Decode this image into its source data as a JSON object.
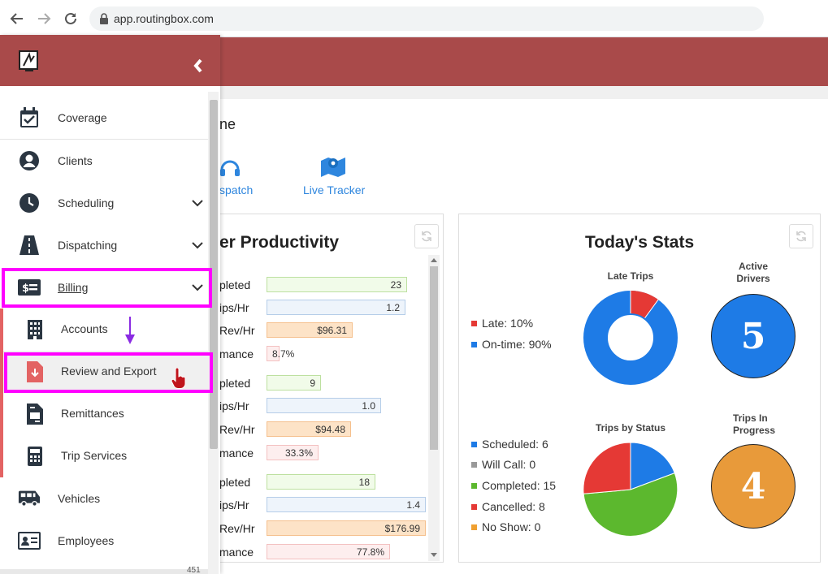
{
  "browser": {
    "url": "app.routingbox.com"
  },
  "page": {
    "title_fragment": "ne"
  },
  "quick_links": [
    {
      "label": "spatch",
      "icon": "headset-icon"
    },
    {
      "label": "Live Tracker",
      "icon": "map-pin-icon"
    }
  ],
  "productivity": {
    "title": "er Productivity",
    "groups": [
      {
        "rows": [
          {
            "label": "pleted",
            "value": "23",
            "color": "green"
          },
          {
            "label": "ips/Hr",
            "value": "1.2",
            "color": "blue"
          },
          {
            "label": "Rev/Hr",
            "value": "$96.31",
            "color": "orange"
          },
          {
            "label": "mance",
            "value": "8.7%",
            "color": "pink"
          }
        ]
      },
      {
        "rows": [
          {
            "label": "pleted",
            "value": "9",
            "color": "green"
          },
          {
            "label": "ips/Hr",
            "value": "1.0",
            "color": "blue"
          },
          {
            "label": "Rev/Hr",
            "value": "$94.48",
            "color": "orange"
          },
          {
            "label": "mance",
            "value": "33.3%",
            "color": "pink"
          }
        ]
      },
      {
        "rows": [
          {
            "label": "pleted",
            "value": "18",
            "color": "green"
          },
          {
            "label": "ips/Hr",
            "value": "1.4",
            "color": "blue"
          },
          {
            "label": "Rev/Hr",
            "value": "$176.99",
            "color": "orange"
          },
          {
            "label": "mance",
            "value": "77.8%",
            "color": "pink"
          }
        ]
      }
    ]
  },
  "stats": {
    "title": "Today's Stats",
    "late_trips": {
      "title": "Late Trips",
      "legend": [
        {
          "label": "Late: 10%",
          "color": "#e53935"
        },
        {
          "label": "On-time: 90%",
          "color": "#1e7be6"
        }
      ]
    },
    "active_drivers": {
      "title_line1": "Active",
      "title_line2": "Drivers",
      "value": "5",
      "color": "#1e7be6"
    },
    "trips_by_status": {
      "title": "Trips by Status",
      "legend": [
        {
          "label": "Scheduled: 6",
          "color": "#1e7be6"
        },
        {
          "label": "Will Call: 0",
          "color": "#999999"
        },
        {
          "label": "Completed: 15",
          "color": "#5cb82e"
        },
        {
          "label": "Cancelled: 8",
          "color": "#e53935"
        },
        {
          "label": "No Show: 0",
          "color": "#f0a030"
        }
      ]
    },
    "trips_in_progress": {
      "title_line1": "Trips In",
      "title_line2": "Progress",
      "value": "4",
      "color": "#e89a3a"
    }
  },
  "sidebar": {
    "items": [
      {
        "label": "Coverage",
        "icon": "calendar-check-icon"
      },
      {
        "label": "Clients",
        "icon": "user-circle-icon"
      },
      {
        "label": "Scheduling",
        "icon": "clock-icon"
      },
      {
        "label": "Dispatching",
        "icon": "road-icon"
      },
      {
        "label": "Billing",
        "icon": "money-icon"
      }
    ],
    "sub_items": [
      {
        "label": "Accounts",
        "icon": "building-icon"
      },
      {
        "label": "Review and Export",
        "icon": "file-download-icon"
      },
      {
        "label": "Remittances",
        "icon": "file-invoice-icon"
      },
      {
        "label": "Trip Services",
        "icon": "calculator-icon"
      }
    ],
    "bottom_items": [
      {
        "label": "Vehicles",
        "icon": "van-icon"
      },
      {
        "label": "Employees",
        "icon": "id-card-icon"
      }
    ],
    "partial_bottom": "451"
  }
}
